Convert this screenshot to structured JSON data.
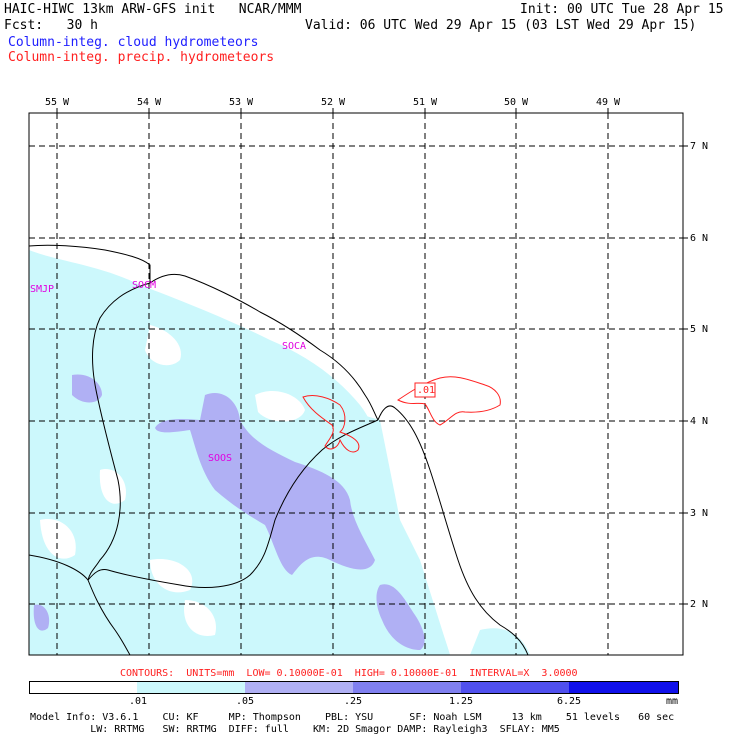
{
  "header": {
    "left1": "HAIC-HIWC 13km ARW-GFS init   NCAR/MMM",
    "right1": "Init: 00 UTC Tue 28 Apr 15",
    "left2": "Fcst:   30 h",
    "right2": "Valid: 06 UTC Wed 29 Apr 15 (03 LST Wed 29 Apr 15)",
    "line3": "Column-integ. cloud hydrometeors",
    "line4": "Column-integ. precip. hydrometeors"
  },
  "map": {
    "lon_labels": [
      "55 W",
      "54 W",
      "53 W",
      "52 W",
      "51 W",
      "50 W",
      "49 W"
    ],
    "lat_labels": [
      "7 N",
      "6 N",
      "5 N",
      "4 N",
      "3 N",
      "2 N"
    ],
    "stations": [
      "SMJP",
      "SOCM",
      "SOCA",
      "SOOS"
    ],
    "contour_label": ".01"
  },
  "colorbar": {
    "contours_line": "CONTOURS:  UNITS=mm  LOW= 0.10000E-01  HIGH= 0.10000E-01  INTERVAL=X  3.0000",
    "colors": [
      "#ffffff",
      "#ccf8fc",
      "#b0b0f4",
      "#8080f0",
      "#5050ee",
      "#1010ea"
    ],
    "labels": [
      ".01",
      ".05",
      ".25",
      "1.25",
      "6.25"
    ],
    "unit": "mm"
  },
  "footer": {
    "line1": "Model Info: V3.6.1    CU: KF     MP: Thompson    PBL: YSU      SF: Noah LSM     13 km    51 levels   60 sec",
    "line2": "          LW: RRTMG   SW: RRTMG  DIFF: full    KM: 2D Smagor DAMP: Rayleigh3  SFLAY: MM5"
  }
}
